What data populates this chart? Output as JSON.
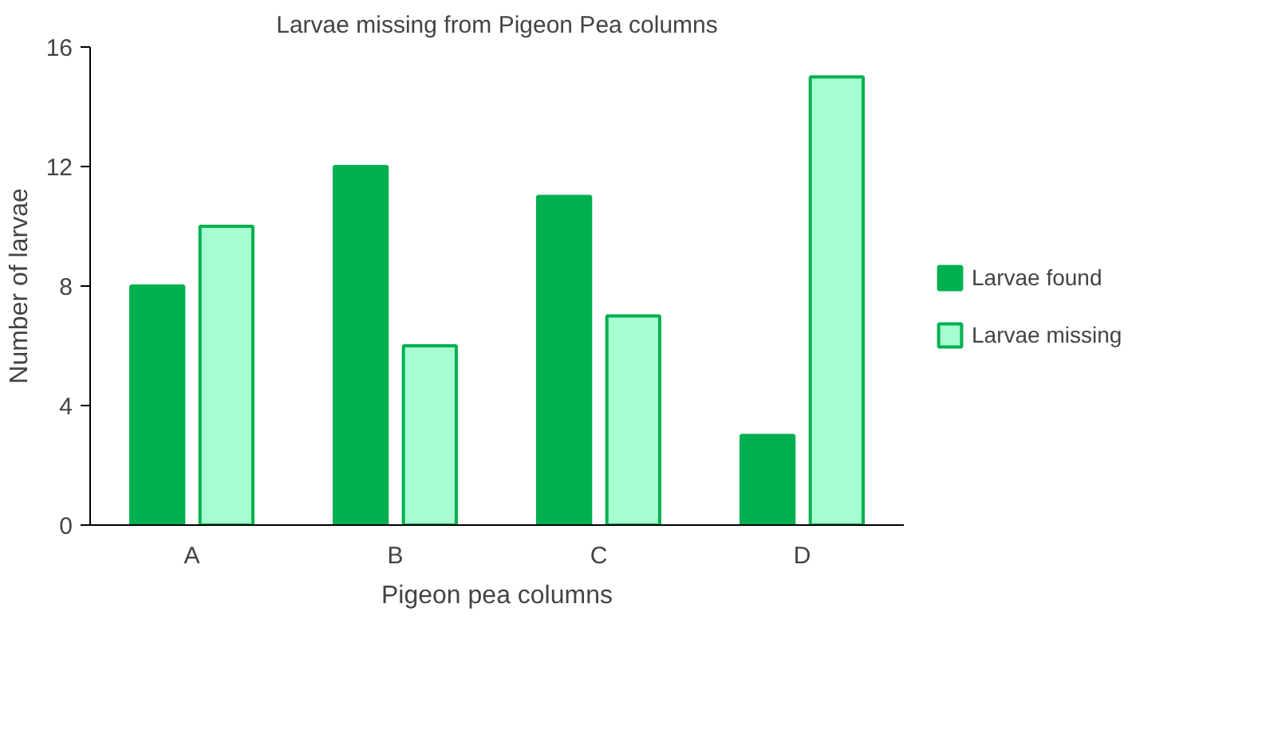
{
  "chart_data": {
    "type": "bar",
    "title": "Larvae missing from Pigeon Pea columns",
    "xlabel": "Pigeon pea columns",
    "ylabel": "Number of larvae",
    "categories": [
      "A",
      "B",
      "C",
      "D"
    ],
    "series": [
      {
        "name": "Larvae found",
        "color": "#00b050",
        "values": [
          8,
          12,
          11,
          3
        ]
      },
      {
        "name": "Larvae missing",
        "color": "#a6fdd0",
        "values": [
          10,
          6,
          7,
          15
        ]
      }
    ],
    "ylim": [
      0,
      16
    ],
    "yticks": [
      0,
      4,
      8,
      12,
      16
    ],
    "grid": false,
    "legend": "right"
  }
}
